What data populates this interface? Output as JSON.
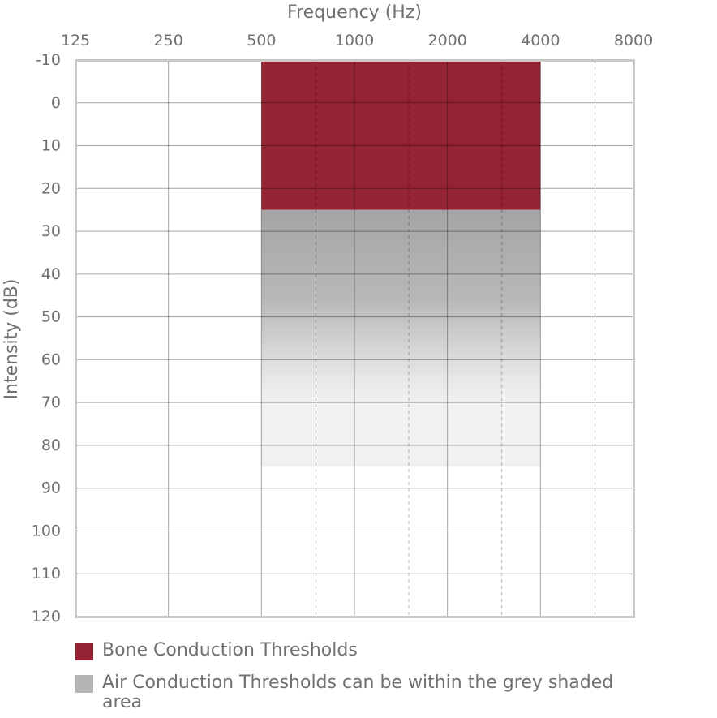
{
  "chart_data": {
    "type": "area",
    "xlabel": "Frequency (Hz)",
    "ylabel": "Intensity (dB)",
    "x_ticks": [
      "125",
      "250",
      "500",
      "1000",
      "2000",
      "4000",
      "8000"
    ],
    "x_dashed_ticks": [
      750,
      1500,
      3000,
      6000
    ],
    "y_ticks": [
      "-10",
      "0",
      "10",
      "20",
      "30",
      "40",
      "50",
      "60",
      "70",
      "80",
      "90",
      "100",
      "110",
      "120"
    ],
    "ylim": [
      -10,
      120
    ],
    "y_inverted": true,
    "x_scale": "log2",
    "xlim": [
      125,
      8000
    ],
    "grid": true,
    "regions": [
      {
        "name": "Bone Conduction Thresholds",
        "x_range": [
          500,
          4000
        ],
        "y_range": [
          -10,
          25
        ],
        "color": "#942334",
        "fill": "solid"
      },
      {
        "name": "Air Conduction Thresholds can be within the grey shaded area",
        "x_range": [
          500,
          4000
        ],
        "y_range": [
          25,
          85
        ],
        "color": "#a5a5a5",
        "fill": "gradient"
      }
    ]
  },
  "legend": [
    {
      "label": "Bone Conduction Thresholds",
      "color": "#942334"
    },
    {
      "label": "Air Conduction Thresholds can be within the grey shaded area",
      "color": "#b4b4b4"
    }
  ]
}
